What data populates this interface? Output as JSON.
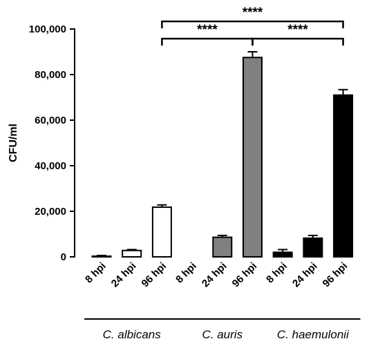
{
  "chart_data": {
    "type": "bar",
    "ylabel": "CFU/ml",
    "ylim": [
      0,
      100000
    ],
    "yticks": [
      0,
      20000,
      40000,
      60000,
      80000,
      100000
    ],
    "ytick_labels": [
      "0",
      "20,000",
      "40,000",
      "60,000",
      "80,000",
      "100,000"
    ],
    "categories": [
      "8 hpi",
      "24 hpi",
      "96 hpi",
      "8 hpi",
      "24 hpi",
      "96 hpi",
      "8 hpi",
      "24 hpi",
      "96 hpi"
    ],
    "values": [
      300,
      2800,
      21800,
      0,
      8600,
      87500,
      2000,
      8200,
      71000
    ],
    "errors": [
      300,
      400,
      1000,
      0,
      800,
      2500,
      1200,
      1200,
      2400
    ],
    "bar_fills": [
      "#ffffff",
      "#ffffff",
      "#ffffff",
      "#808080",
      "#808080",
      "#808080",
      "#000000",
      "#000000",
      "#000000"
    ],
    "groups": [
      {
        "label": "C. albicans",
        "start": 0,
        "end": 2
      },
      {
        "label": "C. auris",
        "start": 3,
        "end": 5
      },
      {
        "label": "C. haemulonii",
        "start": 6,
        "end": 8
      }
    ],
    "significance": [
      {
        "from": 2,
        "to": 5,
        "label": "****",
        "level": 1
      },
      {
        "from": 5,
        "to": 8,
        "label": "****",
        "level": 1
      },
      {
        "from": 2,
        "to": 8,
        "label": "****",
        "level": 2
      }
    ],
    "grid": false,
    "legend": "none"
  }
}
